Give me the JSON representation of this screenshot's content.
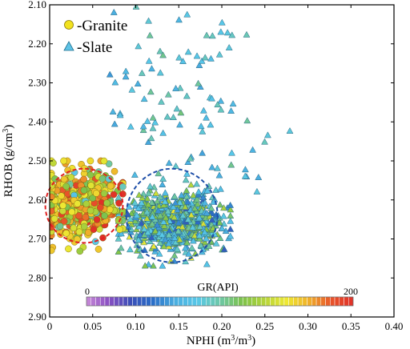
{
  "chart_data": {
    "type": "scatter",
    "xlabel": "NPHI (m³/m³)",
    "ylabel": "RHOB (g/cm³)",
    "xlim": [
      0,
      0.4
    ],
    "ylim": [
      2.1,
      2.9
    ],
    "y_inverted": true,
    "x_ticks": [
      "0",
      "0.05",
      "0.10",
      "0.15",
      "0.20",
      "0.25",
      "0.30",
      "0.35",
      "0.40"
    ],
    "y_ticks": [
      "2.10",
      "2.20",
      "2.30",
      "2.40",
      "2.50",
      "2.60",
      "2.70",
      "2.80",
      "2.90"
    ],
    "grid": false,
    "legend": {
      "placement": "top-left",
      "entries": [
        {
          "label": "-Granite",
          "marker": "circle"
        },
        {
          "label": "-Slate",
          "marker": "triangle"
        }
      ]
    },
    "colorbar": {
      "label": "GR(API)",
      "min_label": "0",
      "max_label": "200",
      "min": 0,
      "max": 200,
      "colors": [
        "#c88ad8",
        "#8a4fc2",
        "#3a4fb8",
        "#2a6fc8",
        "#4aaee0",
        "#58c8e8",
        "#6ec8a8",
        "#7cc24a",
        "#b4d43a",
        "#eee832",
        "#f0b02a",
        "#e8542a",
        "#e03028"
      ]
    },
    "series": [
      {
        "name": "Granite",
        "marker": "circle",
        "cloud": {
          "x_min": 0.0,
          "x_max": 0.085,
          "y_min": 2.5,
          "y_max": 2.75,
          "center_x": 0.035,
          "center_y": 2.61,
          "count": 520,
          "gr_range": [
            80,
            200
          ]
        },
        "points_summary": "dense cluster NPHI 0.00–0.08, RHOB 2.50–2.75"
      },
      {
        "name": "Slate",
        "marker": "triangle",
        "cloud": {
          "x_min": 0.07,
          "x_max": 0.285,
          "y_min": 2.1,
          "y_max": 2.77,
          "center_x": 0.145,
          "center_y": 2.66,
          "count": 900,
          "gr_range": [
            40,
            150
          ]
        },
        "points_summary": "main cluster NPHI 0.08–0.21, RHOB 2.55–2.77; sparse tail up to RHOB 2.10"
      }
    ],
    "annotations": [
      {
        "shape": "dashed-circle",
        "color": "#e02020",
        "center": [
          0.04,
          2.615
        ],
        "radius_x": 0.045,
        "radius_y": 0.095
      },
      {
        "shape": "dashed-circle",
        "color": "#1f4fa8",
        "center": [
          0.142,
          2.64
        ],
        "radius_x": 0.053,
        "radius_y": 0.12
      }
    ]
  }
}
